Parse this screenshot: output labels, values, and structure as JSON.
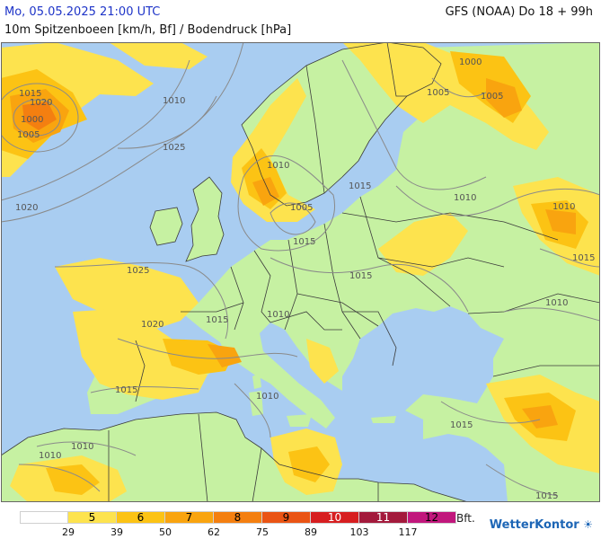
{
  "header": {
    "datetime": "Mo, 05.05.2025 21:00 UTC",
    "model": "GFS (NOAA) Do 18 + 99h",
    "parameter": "10m Spitzenboeen [km/h, Bf] / Bodendruck [hPa]"
  },
  "legend": {
    "unit": "Bft.",
    "classes": [
      {
        "label": "",
        "color": "#ffffff"
      },
      {
        "label": "5",
        "color": "#fde34e"
      },
      {
        "label": "6",
        "color": "#fcc314"
      },
      {
        "label": "7",
        "color": "#f9a40f"
      },
      {
        "label": "8",
        "color": "#f47f10"
      },
      {
        "label": "9",
        "color": "#ea5414"
      },
      {
        "label": "10",
        "color": "#d71e20"
      },
      {
        "label": "11",
        "color": "#a31a3c"
      },
      {
        "label": "12",
        "color": "#c1177c"
      }
    ],
    "thresholds": [
      "29",
      "39",
      "50",
      "62",
      "75",
      "89",
      "103",
      "117"
    ]
  },
  "map": {
    "colors": {
      "sea": "#a9cdf1",
      "land_calm": "#c6f1a2",
      "border": "#3b3b3b",
      "isobar": "#8a8a8a"
    },
    "isobar_labels": [
      "1000",
      "1005",
      "1020",
      "1025",
      "1020",
      "1015",
      "1010",
      "1005",
      "1010",
      "1015",
      "1025",
      "1020",
      "1015",
      "1015",
      "1010",
      "1010",
      "1015",
      "1015",
      "1010",
      "1010",
      "1005",
      "1000",
      "1005",
      "1010",
      "1015",
      "1010",
      "1015",
      "1010",
      "1015"
    ]
  },
  "brand": {
    "name": "WetterKontor",
    "icon": "sun-icon"
  }
}
